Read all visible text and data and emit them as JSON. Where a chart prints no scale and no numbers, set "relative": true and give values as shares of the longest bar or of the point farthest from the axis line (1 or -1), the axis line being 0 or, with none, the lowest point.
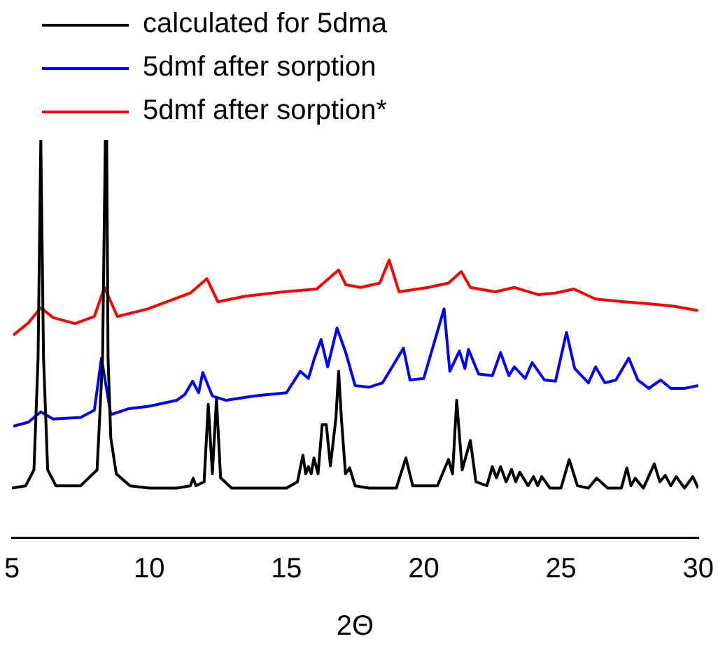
{
  "chart_data": {
    "type": "line",
    "relative": true,
    "xlabel": "2Θ",
    "xlim": [
      5,
      30
    ],
    "xticks": [
      5,
      10,
      15,
      20,
      25,
      30
    ],
    "tick_labels": "x",
    "legend": "top left",
    "grid": false,
    "marker": "none",
    "line_style": "solid",
    "series": [
      {
        "name": "calculated for 5dma",
        "color": "#000000",
        "x": [
          5,
          5.5,
          5.8,
          5.95,
          6.05,
          6.15,
          6.3,
          6.6,
          7.5,
          8.1,
          8.3,
          8.4,
          8.45,
          8.5,
          8.6,
          8.8,
          9.3,
          10,
          11,
          11.5,
          11.6,
          11.7,
          12,
          12.15,
          12.3,
          12.45,
          12.6,
          13,
          14,
          15,
          15.4,
          15.6,
          15.7,
          15.8,
          15.9,
          16.0,
          16.15,
          16.3,
          16.45,
          16.6,
          16.8,
          16.9,
          17.0,
          17.15,
          17.3,
          17.5,
          18,
          19,
          19.35,
          19.6,
          20.5,
          20.9,
          21.05,
          21.2,
          21.4,
          21.7,
          21.9,
          22.3,
          22.5,
          22.65,
          22.8,
          23.0,
          23.2,
          23.35,
          23.5,
          23.8,
          24.0,
          24.15,
          24.3,
          24.6,
          25,
          25.3,
          25.6,
          26,
          26.3,
          26.7,
          27.2,
          27.4,
          27.55,
          27.7,
          28,
          28.4,
          28.6,
          28.8,
          29,
          29.2,
          29.5,
          29.8,
          30
        ],
        "values": [
          0.124,
          0.13,
          0.17,
          0.45,
          1,
          0.45,
          0.17,
          0.13,
          0.13,
          0.17,
          0.45,
          1,
          1,
          0.45,
          0.25,
          0.16,
          0.13,
          0.124,
          0.124,
          0.13,
          0.149,
          0.13,
          0.14,
          0.335,
          0.16,
          0.349,
          0.15,
          0.124,
          0.124,
          0.124,
          0.14,
          0.207,
          0.16,
          0.178,
          0.16,
          0.2,
          0.16,
          0.284,
          0.284,
          0.18,
          0.3,
          0.418,
          0.3,
          0.16,
          0.175,
          0.13,
          0.124,
          0.124,
          0.2,
          0.13,
          0.13,
          0.196,
          0.16,
          0.345,
          0.17,
          0.244,
          0.14,
          0.13,
          0.178,
          0.15,
          0.178,
          0.14,
          0.171,
          0.14,
          0.164,
          0.13,
          0.153,
          0.13,
          0.153,
          0.124,
          0.124,
          0.196,
          0.13,
          0.124,
          0.149,
          0.124,
          0.124,
          0.175,
          0.13,
          0.149,
          0.124,
          0.185,
          0.14,
          0.156,
          0.13,
          0.153,
          0.124,
          0.153,
          0.124
        ]
      },
      {
        "name": "5dmf after sorption",
        "color": "#0000ff",
        "x": [
          5.05,
          5.6,
          6.05,
          6.5,
          7.5,
          8.0,
          8.26,
          8.6,
          9.26,
          10,
          11.0,
          11.3,
          11.58,
          11.8,
          11.95,
          12.3,
          12.8,
          13.84,
          15.0,
          15.5,
          15.8,
          16.0,
          16.26,
          16.5,
          16.84,
          17.16,
          17.5,
          18,
          18.5,
          19.26,
          19.5,
          20,
          20.74,
          20.95,
          21.3,
          21.5,
          21.63,
          22,
          22.5,
          22.8,
          23.1,
          23.3,
          23.7,
          23.95,
          24.4,
          24.8,
          25.2,
          25.5,
          26.0,
          26.26,
          26.6,
          27.0,
          27.47,
          27.8,
          28.2,
          28.63,
          29,
          29.5,
          30
        ],
        "values": [
          0.28,
          0.29,
          0.316,
          0.298,
          0.302,
          0.32,
          0.451,
          0.309,
          0.324,
          0.33,
          0.345,
          0.36,
          0.393,
          0.364,
          0.415,
          0.356,
          0.345,
          0.356,
          0.364,
          0.418,
          0.4,
          0.447,
          0.498,
          0.429,
          0.527,
          0.465,
          0.382,
          0.378,
          0.389,
          0.476,
          0.396,
          0.4,
          0.575,
          0.418,
          0.469,
          0.425,
          0.473,
          0.411,
          0.407,
          0.465,
          0.407,
          0.429,
          0.4,
          0.44,
          0.396,
          0.393,
          0.516,
          0.425,
          0.389,
          0.429,
          0.389,
          0.396,
          0.451,
          0.396,
          0.375,
          0.396,
          0.375,
          0.375,
          0.382
        ]
      },
      {
        "name": "5dmf after sorption*",
        "color": "#ff0000",
        "x": [
          5.05,
          5.6,
          6.05,
          6.5,
          7.3,
          8.0,
          8.37,
          8.84,
          9.95,
          11.5,
          12.1,
          12.5,
          13.5,
          14.9,
          16.1,
          16.9,
          17.16,
          17.7,
          18.4,
          18.74,
          19.1,
          20.16,
          20.9,
          21.37,
          21.7,
          22.6,
          23.3,
          24.16,
          24.8,
          25.47,
          26.26,
          27.3,
          28.05,
          29.1,
          30
        ],
        "values": [
          0.509,
          0.54,
          0.578,
          0.553,
          0.538,
          0.556,
          0.629,
          0.556,
          0.575,
          0.615,
          0.651,
          0.593,
          0.607,
          0.618,
          0.625,
          0.673,
          0.636,
          0.629,
          0.64,
          0.698,
          0.618,
          0.629,
          0.64,
          0.669,
          0.629,
          0.618,
          0.629,
          0.611,
          0.615,
          0.625,
          0.6,
          0.593,
          0.589,
          0.582,
          0.571
        ]
      }
    ]
  }
}
